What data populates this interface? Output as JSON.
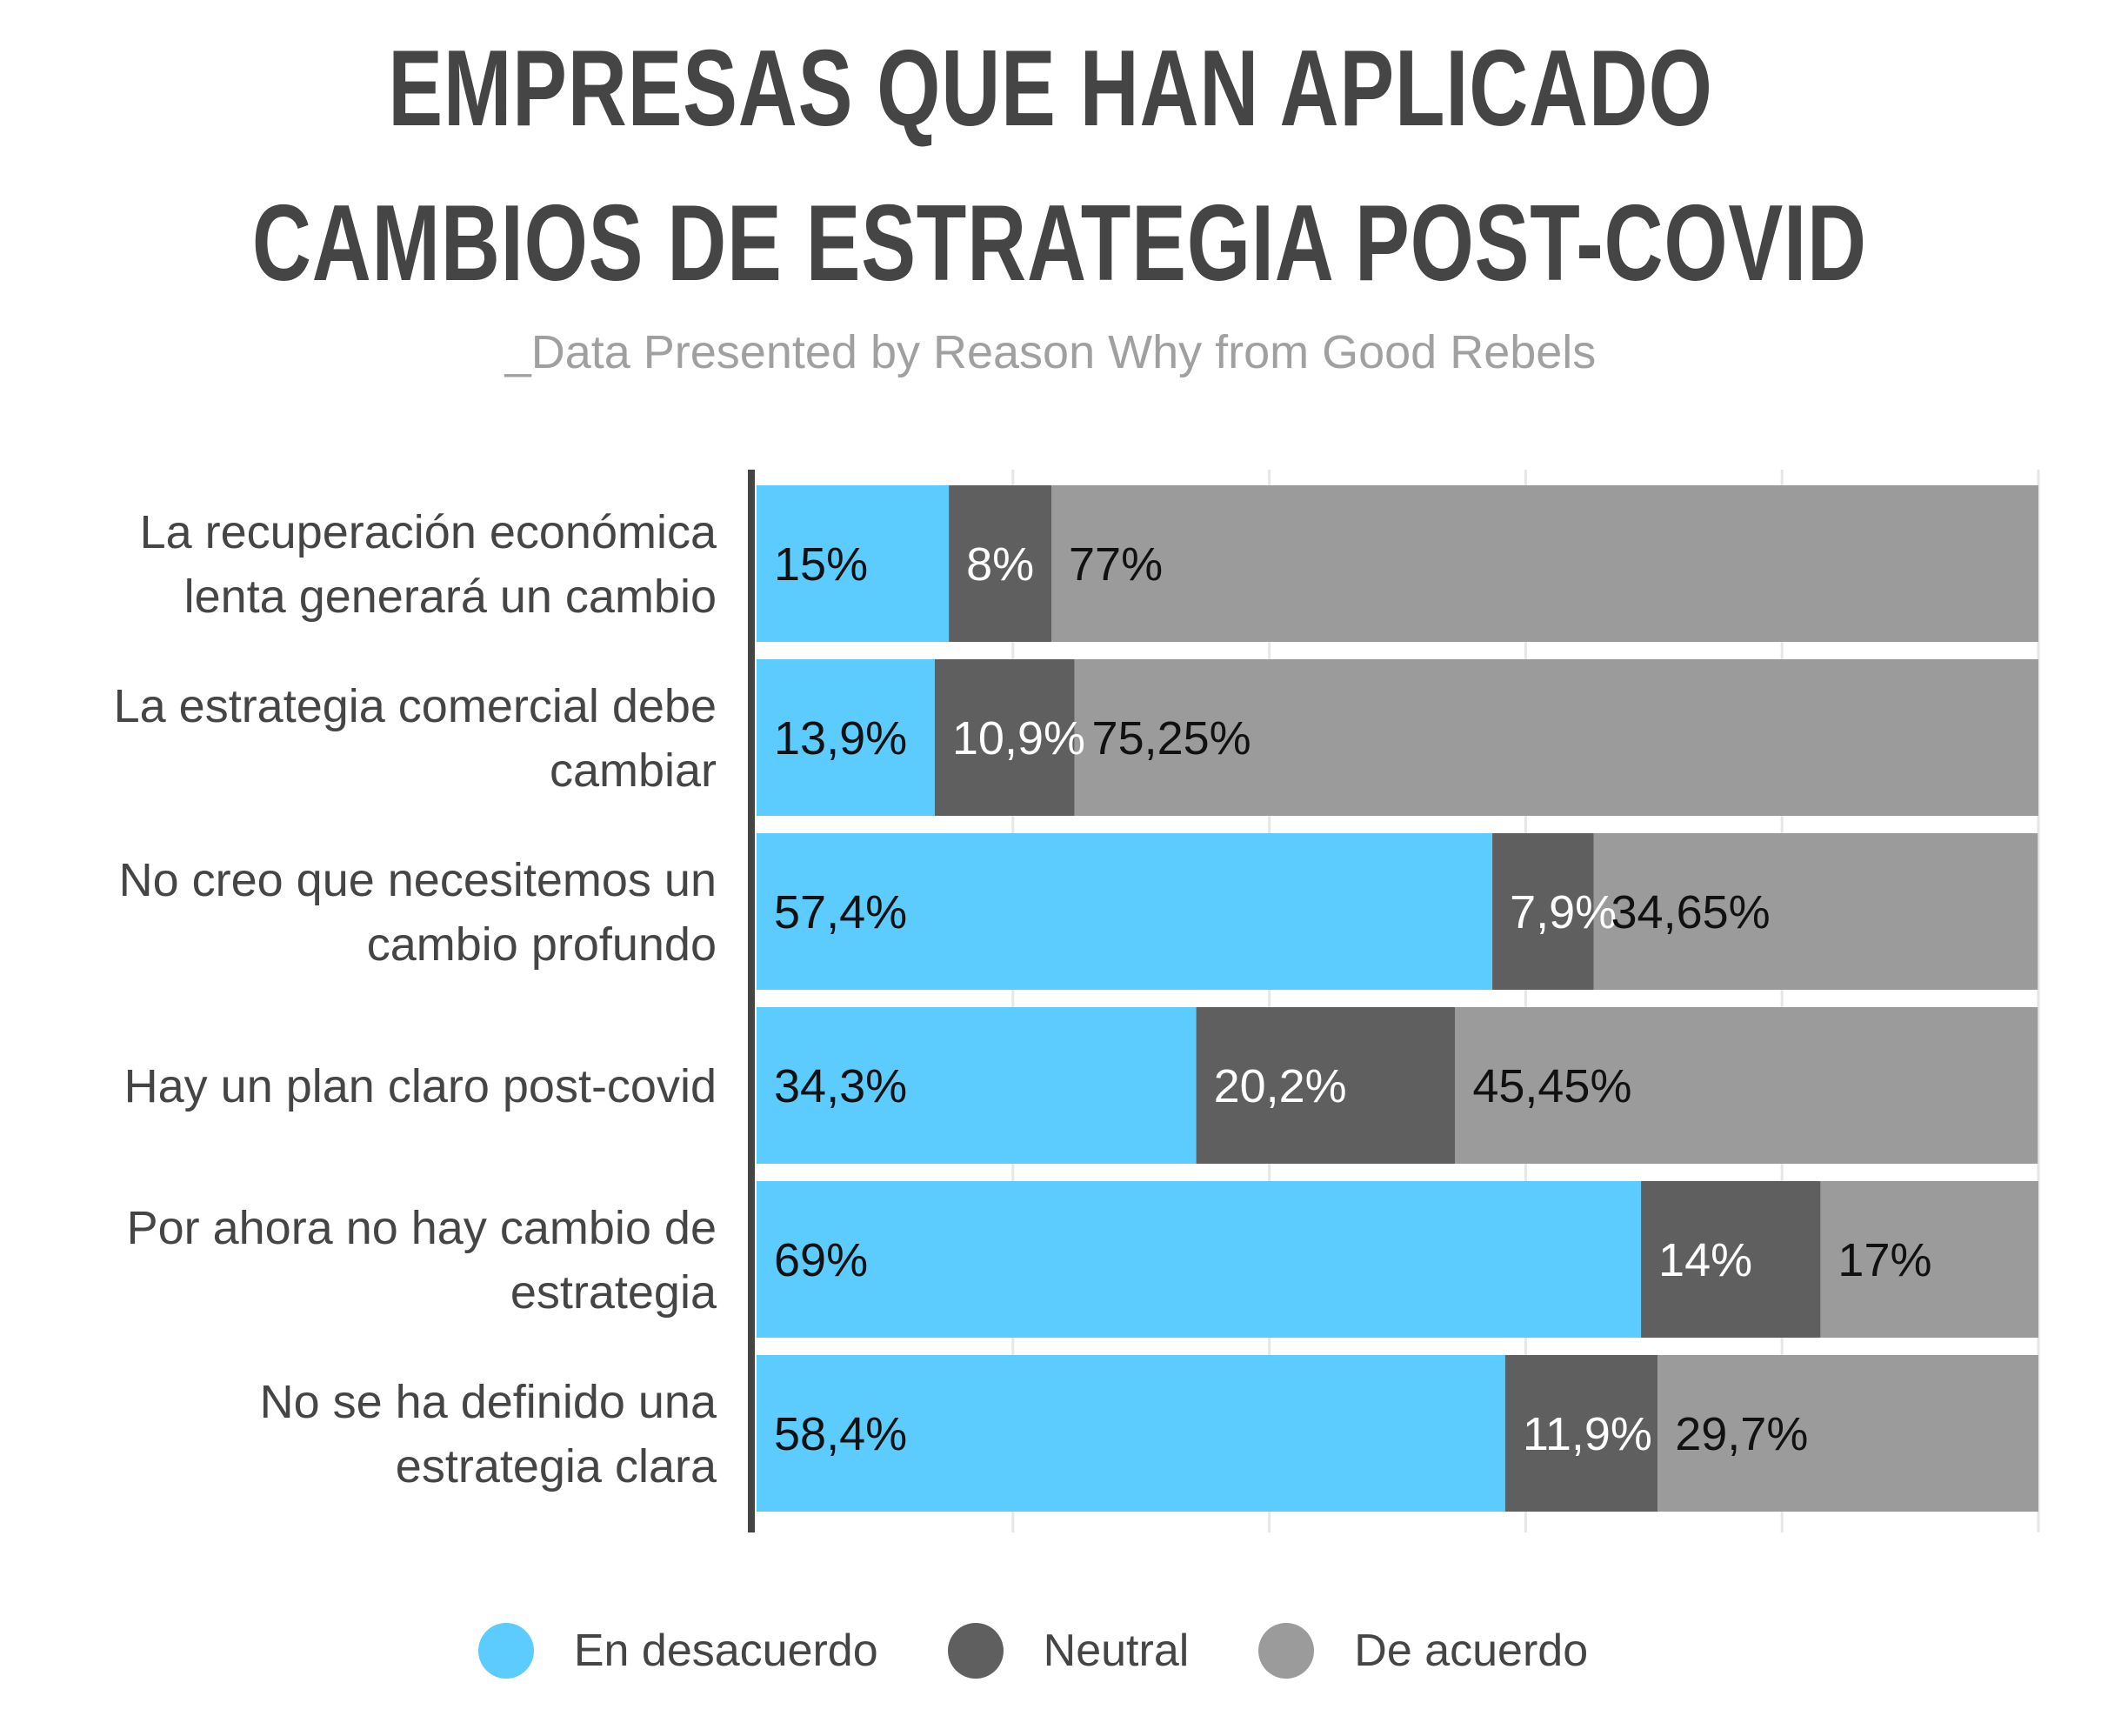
{
  "header": {
    "title_line1": "EMPRESAS QUE HAN APLICADO",
    "title_line2": "CAMBIOS DE ESTRATEGIA POST-COVID",
    "subtitle": "_Data Presented by Reason Why from Good Rebels"
  },
  "colors": {
    "disagree": "#5bccfd",
    "neutral": "#5f5f5f",
    "agree": "#9b9b9b",
    "axis": "#454545",
    "grid": "#e6e6e6",
    "category_text": "#454545"
  },
  "chart_data": {
    "type": "bar",
    "orientation": "horizontal",
    "stacked": true,
    "categories": [
      [
        "La recuperación económica",
        "lenta generará un cambio"
      ],
      [
        "La estrategia comercial debe",
        "cambiar"
      ],
      [
        "No creo que necesitemos un",
        "cambio profundo"
      ],
      [
        "Hay un plan claro post-covid"
      ],
      [
        "Por ahora no hay cambio de",
        "estrategia"
      ],
      [
        "No se ha definido una",
        "estrategia clara"
      ]
    ],
    "series": [
      {
        "name": "En desacuerdo",
        "values": [
          15,
          13.9,
          57.4,
          34.3,
          69,
          58.4
        ],
        "labels": [
          "15%",
          "13,9%",
          "57,4%",
          "34,3%",
          "69%",
          "58,4%"
        ]
      },
      {
        "name": "Neutral",
        "values": [
          8,
          10.9,
          7.9,
          20.2,
          14,
          11.9
        ],
        "labels": [
          "8%",
          "10,9%",
          "7,9%",
          "20,2%",
          "14%",
          "11,9%"
        ]
      },
      {
        "name": "De acuerdo",
        "values": [
          77,
          75.25,
          34.65,
          45.45,
          17,
          29.7
        ],
        "labels": [
          "77%",
          "75,25%",
          "34,65%",
          "45,45%",
          "17%",
          "29,7%"
        ]
      }
    ],
    "xlim": [
      0,
      100
    ],
    "grid": true,
    "legend_position": "bottom"
  }
}
